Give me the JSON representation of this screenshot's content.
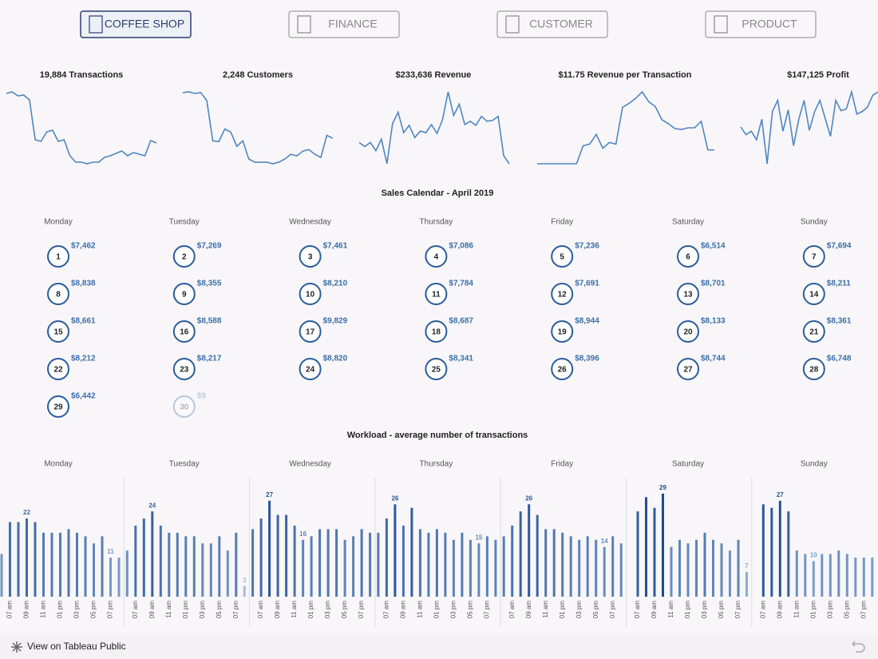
{
  "nav": [
    "COFFEE SHOP",
    "FINANCE",
    "CUSTOMER",
    "PRODUCT"
  ],
  "chart_data": [
    {
      "type": "line",
      "title": "19,884 Transactions",
      "values": [
        92,
        94,
        89,
        90,
        84,
        34,
        32,
        44,
        46,
        32,
        34,
        14,
        6,
        6,
        4,
        6,
        6,
        12,
        14,
        17,
        20,
        14,
        18,
        16,
        14,
        33,
        30
      ]
    },
    {
      "type": "line",
      "title": "2,248 Customers",
      "values": [
        94,
        95,
        93,
        94,
        84,
        33,
        32,
        48,
        44,
        26,
        33,
        10,
        6,
        6,
        6,
        4,
        6,
        10,
        16,
        14,
        20,
        22,
        16,
        12,
        40,
        36
      ]
    },
    {
      "type": "line",
      "title": "$233,636 Revenue",
      "values": [
        32,
        27,
        32,
        22,
        36,
        6,
        55,
        69,
        44,
        53,
        38,
        46,
        44,
        54,
        43,
        60,
        94,
        65,
        79,
        54,
        58,
        53,
        64,
        58,
        59,
        64,
        16,
        6
      ]
    },
    {
      "type": "line",
      "title": "$11.75 Revenue per Transaction",
      "values": [
        6,
        6,
        6,
        6,
        6,
        6,
        6,
        28,
        30,
        42,
        25,
        32,
        30,
        75,
        80,
        86,
        94,
        82,
        76,
        60,
        55,
        49,
        48,
        50,
        50,
        58,
        23,
        23
      ]
    },
    {
      "type": "line",
      "title": "$147,125 Profit",
      "values": [
        49,
        40,
        44,
        34,
        58,
        6,
        67,
        80,
        44,
        69,
        27,
        58,
        80,
        45,
        67,
        80,
        59,
        38,
        80,
        68,
        70,
        90,
        64,
        67,
        72,
        86,
        90
      ]
    },
    {
      "type": "bar",
      "title": "Workload - average number of transactions",
      "categories": [
        null,
        "07 am",
        null,
        "09 am",
        null,
        "11 am",
        null,
        "01 pm",
        null,
        "03 pm",
        null,
        "05 pm",
        null,
        "07 pm",
        null
      ],
      "panels": [
        {
          "name": "Monday",
          "values": [
            12,
            21,
            21,
            22,
            21,
            18,
            18,
            18,
            19,
            18,
            17,
            15,
            17,
            11,
            11
          ]
        },
        {
          "name": "Tuesday",
          "values": [
            13,
            20,
            22,
            24,
            20,
            18,
            18,
            17,
            17,
            15,
            15,
            17,
            13,
            18,
            3
          ]
        },
        {
          "name": "Wednesday",
          "values": [
            19,
            22,
            27,
            23,
            23,
            20,
            16,
            17,
            19,
            19,
            19,
            16,
            17,
            19,
            18
          ]
        },
        {
          "name": "Thursday",
          "values": [
            18,
            22,
            26,
            20,
            25,
            19,
            18,
            19,
            18,
            16,
            18,
            16,
            15,
            17,
            16
          ]
        },
        {
          "name": "Friday",
          "values": [
            17,
            20,
            24,
            26,
            23,
            19,
            19,
            18,
            17,
            16,
            17,
            16,
            14,
            17,
            15
          ]
        },
        {
          "name": "Saturday",
          "values": [
            null,
            24,
            28,
            25,
            29,
            14,
            16,
            15,
            16,
            18,
            16,
            15,
            13,
            16,
            7
          ]
        },
        {
          "name": "Sunday",
          "values": [
            null,
            26,
            25,
            27,
            24,
            13,
            12,
            10,
            12,
            12,
            13,
            12,
            11,
            11,
            11
          ]
        }
      ]
    }
  ],
  "calendar": {
    "title": "Sales Calendar - April 2019",
    "weekdays": [
      "Monday",
      "Tuesday",
      "Wednesday",
      "Thursday",
      "Friday",
      "Saturday",
      "Sunday"
    ],
    "days": [
      {
        "day": 1,
        "sales": "$7,462"
      },
      {
        "day": 2,
        "sales": "$7,269"
      },
      {
        "day": 3,
        "sales": "$7,461"
      },
      {
        "day": 4,
        "sales": "$7,086"
      },
      {
        "day": 5,
        "sales": "$7,236"
      },
      {
        "day": 6,
        "sales": "$6,514"
      },
      {
        "day": 7,
        "sales": "$7,694"
      },
      {
        "day": 8,
        "sales": "$8,838"
      },
      {
        "day": 9,
        "sales": "$8,355"
      },
      {
        "day": 10,
        "sales": "$8,210"
      },
      {
        "day": 11,
        "sales": "$7,784"
      },
      {
        "day": 12,
        "sales": "$7,691"
      },
      {
        "day": 13,
        "sales": "$8,701"
      },
      {
        "day": 14,
        "sales": "$8,211"
      },
      {
        "day": 15,
        "sales": "$8,661"
      },
      {
        "day": 16,
        "sales": "$8,588"
      },
      {
        "day": 17,
        "sales": "$9,829"
      },
      {
        "day": 18,
        "sales": "$8,687"
      },
      {
        "day": 19,
        "sales": "$8,944"
      },
      {
        "day": 20,
        "sales": "$8,133"
      },
      {
        "day": 21,
        "sales": "$8,361"
      },
      {
        "day": 22,
        "sales": "$8,212"
      },
      {
        "day": 23,
        "sales": "$8,217"
      },
      {
        "day": 24,
        "sales": "$8,820"
      },
      {
        "day": 25,
        "sales": "$8,341"
      },
      {
        "day": 26,
        "sales": "$8,396"
      },
      {
        "day": 27,
        "sales": "$8,744"
      },
      {
        "day": 28,
        "sales": "$6,748"
      },
      {
        "day": 29,
        "sales": "$6,442"
      },
      {
        "day": 30,
        "sales": "$9"
      }
    ]
  },
  "footer": "View on Tableau Public"
}
